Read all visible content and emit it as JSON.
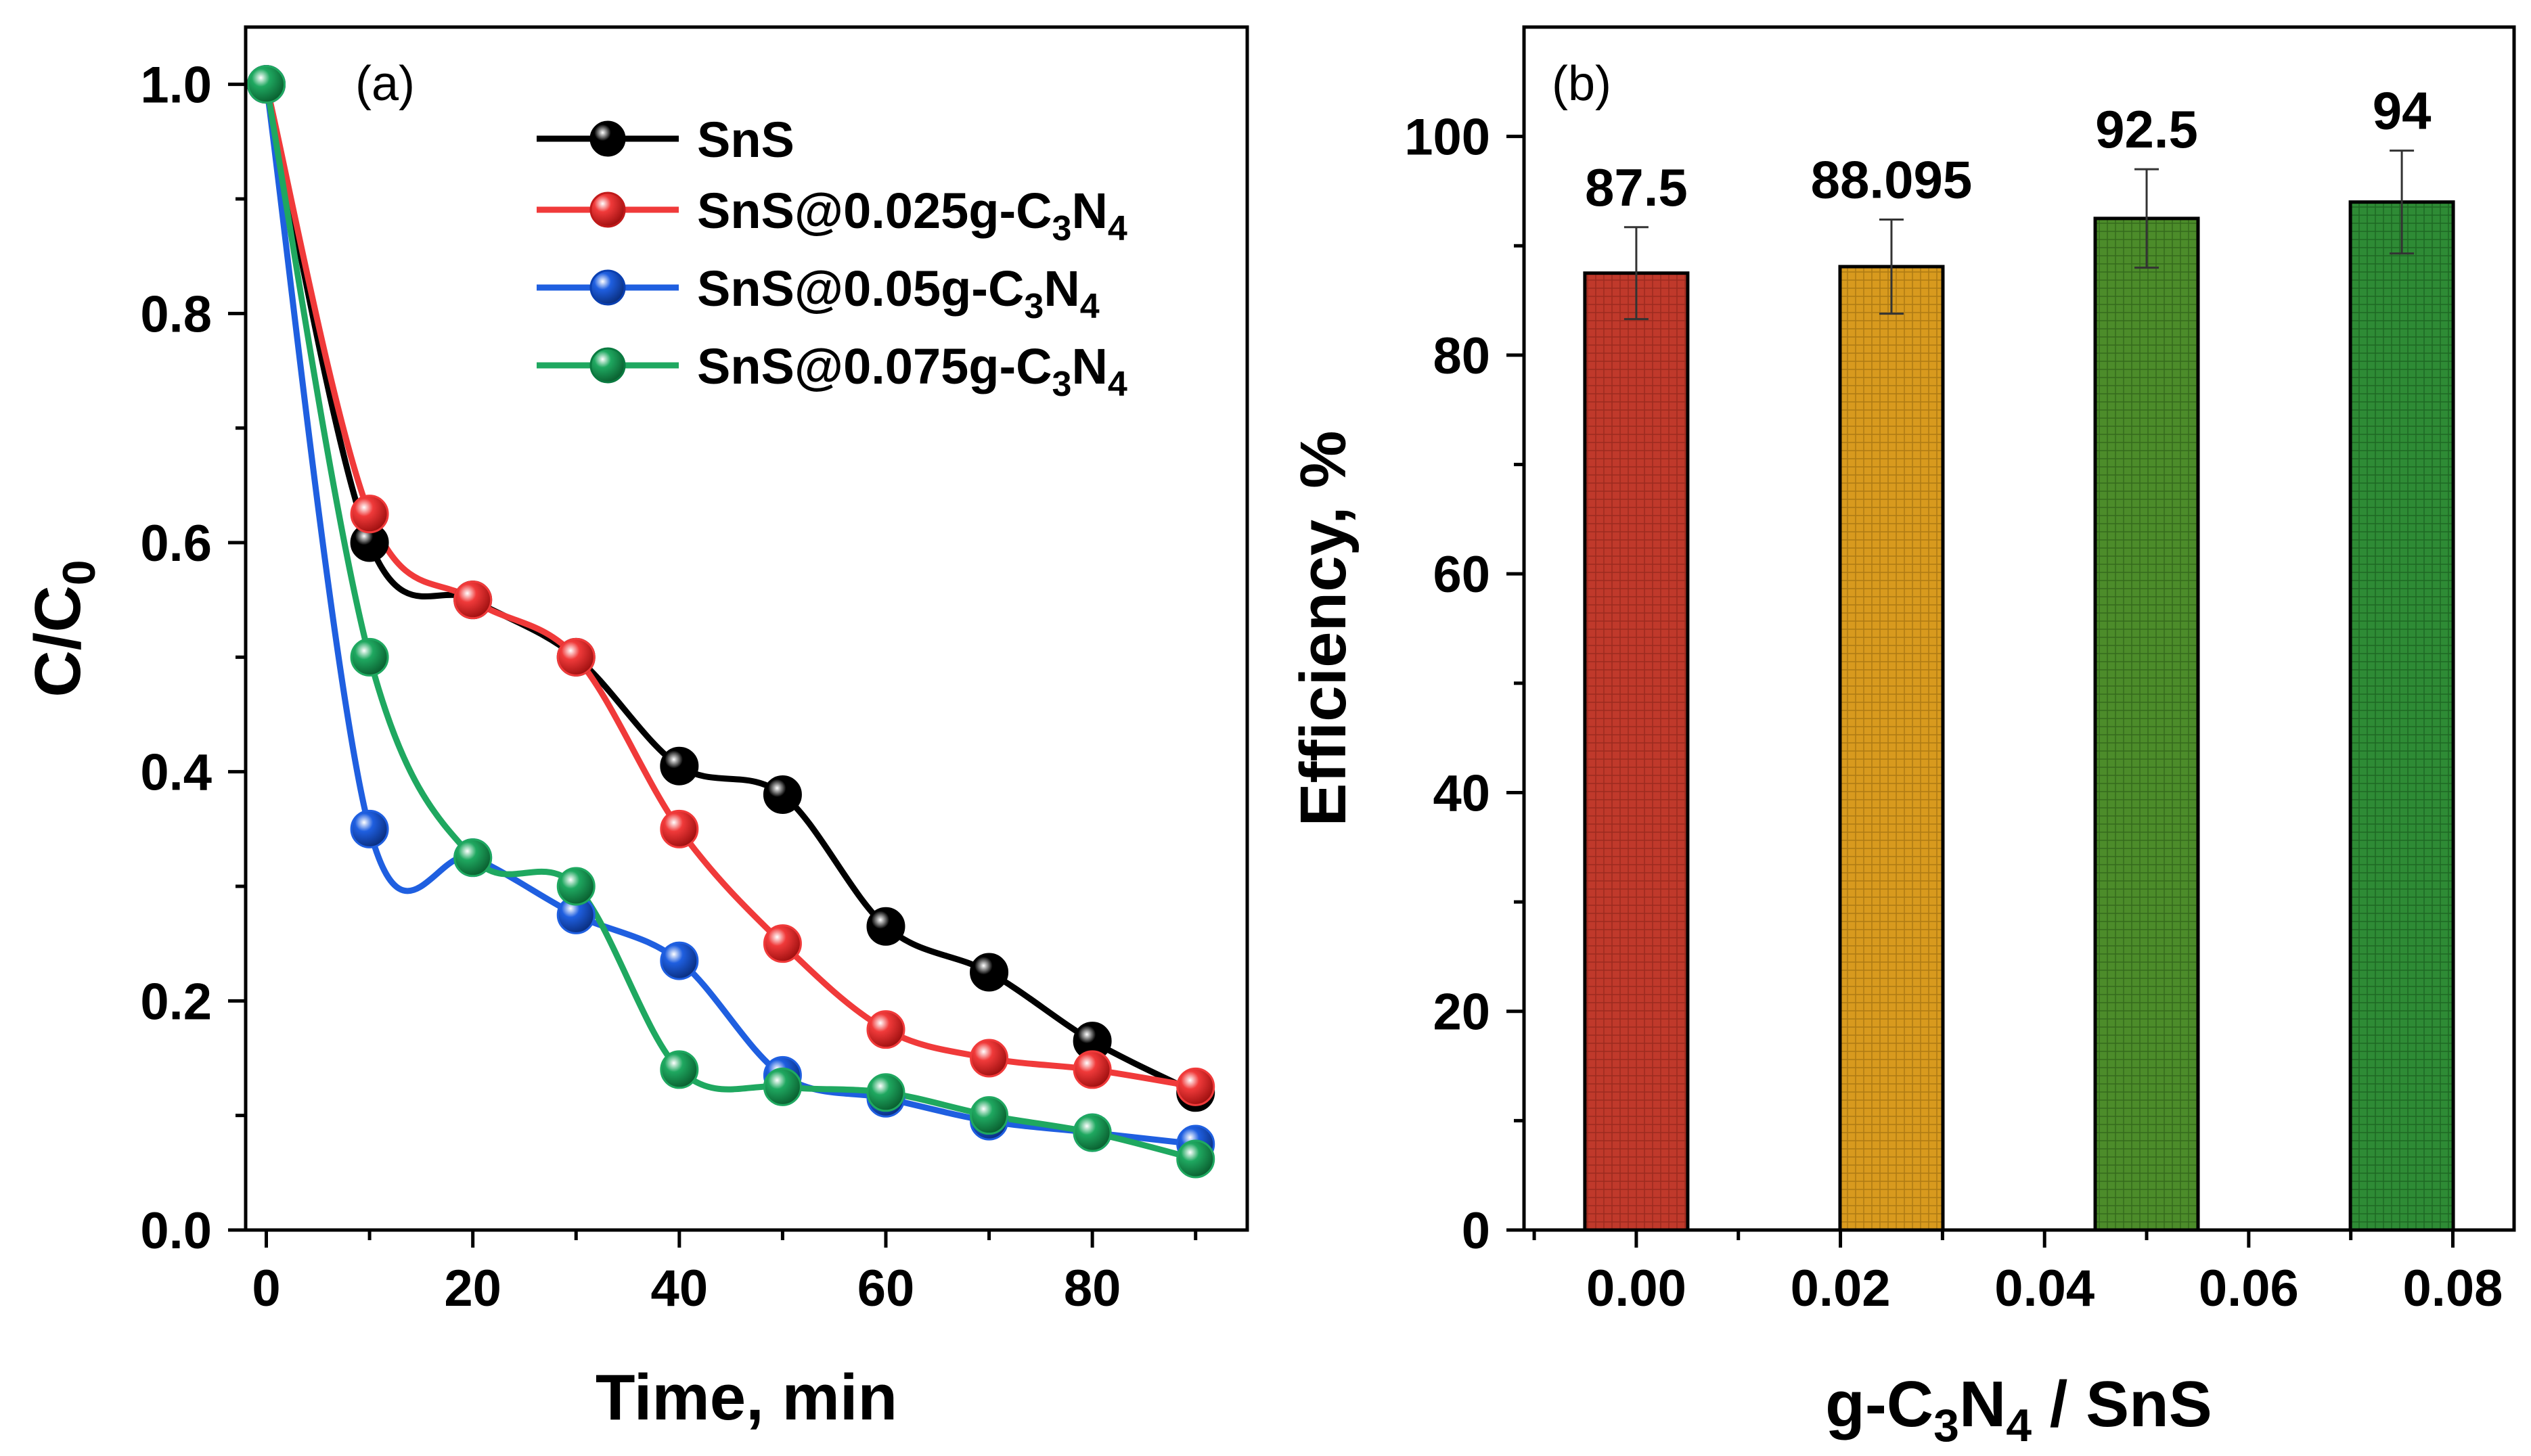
{
  "chart_data": [
    {
      "type": "line",
      "panel": "(a)",
      "xlabel": "Time, min",
      "ylabel": {
        "main": "C/C",
        "sub": "0"
      },
      "xlim": [
        -2,
        95
      ],
      "ylim": [
        0,
        1.05
      ],
      "xticks": [
        0,
        20,
        40,
        60,
        80
      ],
      "xtick_labels": [
        "0",
        "20",
        "40",
        "60",
        "80"
      ],
      "yticks": [
        0,
        0.2,
        0.4,
        0.6,
        0.8,
        1.0
      ],
      "ytick_labels": [
        "0.0",
        "0.2",
        "0.4",
        "0.6",
        "0.8",
        "1.0"
      ],
      "legend_position": "top-right",
      "x": [
        0,
        10,
        20,
        30,
        40,
        50,
        60,
        70,
        80,
        90
      ],
      "series": [
        {
          "name": "SnS",
          "legend": {
            "pre": "SnS",
            "s1": "",
            "mid": "",
            "s2": ""
          },
          "color": "#000000",
          "values": [
            1.0,
            0.6,
            0.55,
            0.5,
            0.405,
            0.38,
            0.265,
            0.225,
            0.165,
            0.12
          ]
        },
        {
          "name": "SnS@0.025g-C3N4",
          "legend": {
            "pre": "SnS@0.025g-C",
            "s1": "3",
            "mid": "N",
            "s2": "4"
          },
          "color": "#f03a3a",
          "values": [
            1.0,
            0.625,
            0.55,
            0.5,
            0.35,
            0.25,
            0.175,
            0.15,
            0.14,
            0.125
          ]
        },
        {
          "name": "SnS@0.05g-C3N4",
          "legend": {
            "pre": "SnS@0.05g-C",
            "s1": "3",
            "mid": "N",
            "s2": "4"
          },
          "color": "#1f5fe0",
          "values": [
            1.0,
            0.35,
            0.325,
            0.275,
            0.235,
            0.135,
            0.115,
            0.095,
            0.085,
            0.075
          ]
        },
        {
          "name": "SnS@0.075g-C3N4",
          "legend": {
            "pre": "SnS@0.075g-C",
            "s1": "3",
            "mid": "N",
            "s2": "4"
          },
          "color": "#1fa860",
          "values": [
            1.0,
            0.5,
            0.325,
            0.3,
            0.14,
            0.125,
            0.12,
            0.1,
            0.085,
            0.062
          ]
        }
      ]
    },
    {
      "type": "bar",
      "panel": "(b)",
      "xlabel": {
        "pre": "g-C",
        "s1": "3",
        "mid": "N",
        "s2": "4",
        "post": " / SnS"
      },
      "ylabel": "Efficiency, %",
      "xlim": [
        -0.011,
        0.086
      ],
      "ylim": [
        0,
        110
      ],
      "xticks": [
        0,
        0.02,
        0.04,
        0.06,
        0.08
      ],
      "xtick_labels": [
        "0.00",
        "0.02",
        "0.04",
        "0.06",
        "0.08"
      ],
      "yticks": [
        0,
        20,
        40,
        60,
        80,
        100
      ],
      "ytick_labels": [
        "0",
        "20",
        "40",
        "60",
        "80",
        "100"
      ],
      "x": [
        0,
        0.025,
        0.05,
        0.075
      ],
      "values": [
        87.5,
        88.095,
        92.5,
        94
      ],
      "data_labels": [
        "87.5",
        "88.095",
        "92.5",
        "94"
      ],
      "errors": [
        4.2,
        4.3,
        4.5,
        4.7
      ],
      "bar_colors": [
        "#c0392b",
        "#d89a1e",
        "#4c8c2a",
        "#2e8b35"
      ]
    }
  ]
}
